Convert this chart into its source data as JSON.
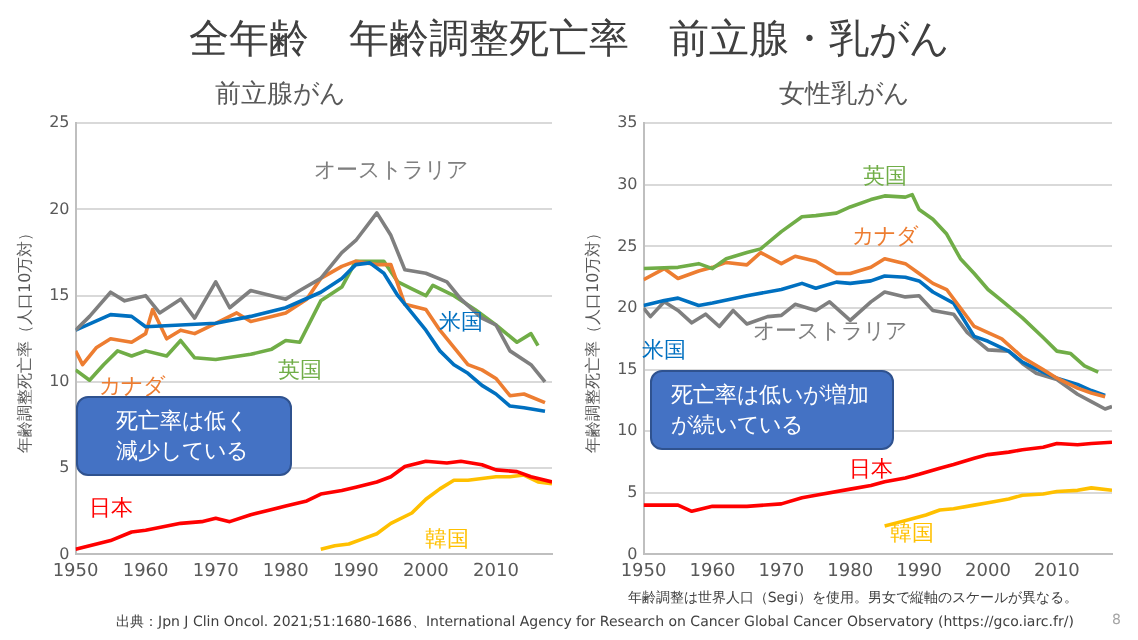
{
  "chart_data": [
    {
      "type": "line",
      "title": "前立腺がん",
      "ylabel": "年齢調整死亡率（人口10万対）",
      "xlim": [
        1950,
        2018
      ],
      "xticks": [
        1950,
        1960,
        1970,
        1980,
        1990,
        2000,
        2010
      ],
      "ylim": [
        0,
        25
      ],
      "yticks": [
        0,
        5,
        10,
        15,
        20,
        25
      ],
      "grid": "y",
      "legend": false,
      "marker": "none",
      "line_style": "solid",
      "annotations": [
        "全年齢　年齢調整死亡率　前立腺・乳がん",
        "死亡率は低く減少している"
      ],
      "series": [
        {
          "name": "オーストラリア",
          "color": "#7f7f7f",
          "x": [
            1950,
            1952,
            1955,
            1957,
            1960,
            1962,
            1965,
            1967,
            1970,
            1972,
            1975,
            1978,
            1980,
            1982,
            1985,
            1988,
            1990,
            1993,
            1995,
            1997,
            2000,
            2003,
            2005,
            2008,
            2010,
            2012,
            2015,
            2017
          ],
          "values": [
            13,
            13.8,
            15.2,
            14.7,
            15,
            14,
            14.8,
            13.7,
            15.8,
            14.3,
            15.3,
            15,
            14.8,
            15.3,
            16,
            17.5,
            18.2,
            19.8,
            18.5,
            16.5,
            16.3,
            15.8,
            14.8,
            13.7,
            13.3,
            11.8,
            11,
            10
          ]
        },
        {
          "name": "米国",
          "color": "#0070c0",
          "x": [
            1950,
            1955,
            1958,
            1960,
            1965,
            1970,
            1975,
            1980,
            1985,
            1988,
            1990,
            1992,
            1994,
            1996,
            1998,
            2000,
            2002,
            2004,
            2006,
            2008,
            2010,
            2012,
            2014,
            2017
          ],
          "values": [
            13,
            13.9,
            13.8,
            13.2,
            13.3,
            13.4,
            13.8,
            14.3,
            15.2,
            16,
            16.8,
            16.9,
            16.3,
            15,
            14,
            13,
            11.8,
            11,
            10.5,
            9.8,
            9.3,
            8.6,
            8.5,
            8.3
          ]
        },
        {
          "name": "カナダ",
          "color": "#ed7d31",
          "x": [
            1950,
            1951,
            1953,
            1955,
            1958,
            1960,
            1961,
            1963,
            1965,
            1967,
            1970,
            1973,
            1975,
            1978,
            1980,
            1983,
            1985,
            1988,
            1990,
            1993,
            1995,
            1997,
            2000,
            2002,
            2004,
            2006,
            2008,
            2010,
            2012,
            2014,
            2017
          ],
          "values": [
            11.8,
            11,
            12,
            12.5,
            12.3,
            12.8,
            14.2,
            12.5,
            13,
            12.8,
            13.4,
            14,
            13.5,
            13.8,
            14,
            14.8,
            16,
            16.7,
            17,
            16.8,
            16.8,
            14.5,
            14.2,
            13,
            12,
            11,
            10.7,
            10.2,
            9.2,
            9.3,
            8.8
          ]
        },
        {
          "name": "英国",
          "color": "#70ad47",
          "x": [
            1950,
            1952,
            1954,
            1956,
            1958,
            1960,
            1963,
            1965,
            1967,
            1970,
            1975,
            1978,
            1980,
            1982,
            1985,
            1988,
            1990,
            1992,
            1994,
            1996,
            1998,
            2000,
            2001,
            2004,
            2007,
            2010,
            2013,
            2015,
            2016
          ],
          "values": [
            10.7,
            10.1,
            11,
            11.8,
            11.5,
            11.8,
            11.5,
            12.4,
            11.4,
            11.3,
            11.6,
            11.9,
            12.4,
            12.3,
            14.7,
            15.5,
            17,
            17,
            17,
            15.8,
            15.4,
            15,
            15.6,
            15,
            14.2,
            13.3,
            12.3,
            12.8,
            12.1
          ]
        },
        {
          "name": "日本",
          "color": "#ff0000",
          "x": [
            1950,
            1955,
            1958,
            1960,
            1965,
            1968,
            1970,
            1972,
            1975,
            1980,
            1983,
            1985,
            1988,
            1990,
            1993,
            1995,
            1997,
            2000,
            2003,
            2005,
            2008,
            2010,
            2013,
            2015,
            2018
          ],
          "values": [
            0.3,
            0.8,
            1.3,
            1.4,
            1.8,
            1.9,
            2.1,
            1.9,
            2.3,
            2.8,
            3.1,
            3.5,
            3.7,
            3.9,
            4.2,
            4.5,
            5.1,
            5.4,
            5.3,
            5.4,
            5.2,
            4.9,
            4.8,
            4.5,
            4.2
          ]
        },
        {
          "name": "韓国",
          "color": "#ffc000",
          "x": [
            1985,
            1987,
            1989,
            1991,
            1993,
            1995,
            1998,
            2000,
            2002,
            2004,
            2006,
            2008,
            2010,
            2012,
            2014,
            2016,
            2018
          ],
          "values": [
            0.3,
            0.5,
            0.6,
            0.9,
            1.2,
            1.8,
            2.4,
            3.2,
            3.8,
            4.3,
            4.3,
            4.4,
            4.5,
            4.5,
            4.6,
            4.2,
            4.1
          ]
        }
      ]
    },
    {
      "type": "line",
      "title": "女性乳がん",
      "ylabel": "年齢調整死亡率（人口10万対）",
      "xlim": [
        1950,
        2018
      ],
      "xticks": [
        1950,
        1960,
        1970,
        1980,
        1990,
        2000,
        2010
      ],
      "ylim": [
        0,
        35
      ],
      "yticks": [
        0,
        5,
        10,
        15,
        20,
        25,
        30,
        35
      ],
      "grid": "y",
      "legend": false,
      "marker": "none",
      "line_style": "solid",
      "annotations": [
        "死亡率は低いが増加が続いている",
        "年齢調整は世界人口（Segi）を使用。男女で縦軸のスケールが異なる。",
        "出典：Jpn J Clin Oncol. 2021;51:1680-1686、International Agency for Research on Cancer Global Cancer Observatory (https://gco.iarc.fr/)",
        "8"
      ],
      "series": [
        {
          "name": "英国",
          "color": "#70ad47",
          "x": [
            1950,
            1955,
            1958,
            1960,
            1962,
            1965,
            1967,
            1970,
            1973,
            1975,
            1978,
            1980,
            1983,
            1985,
            1988,
            1989,
            1990,
            1992,
            1994,
            1996,
            1998,
            2000,
            2002,
            2005,
            2008,
            2010,
            2012,
            2014,
            2016
          ],
          "values": [
            23.2,
            23.3,
            23.6,
            23.2,
            24,
            24.5,
            24.8,
            26.2,
            27.4,
            27.5,
            27.7,
            28.2,
            28.8,
            29.1,
            29,
            29.2,
            28,
            27.2,
            26,
            24,
            22.8,
            21.5,
            20.6,
            19.2,
            17.6,
            16.5,
            16.3,
            15.3,
            14.8
          ]
        },
        {
          "name": "カナダ",
          "color": "#ed7d31",
          "x": [
            1950,
            1953,
            1955,
            1958,
            1960,
            1962,
            1965,
            1967,
            1970,
            1972,
            1975,
            1978,
            1980,
            1983,
            1985,
            1988,
            1990,
            1992,
            1994,
            1996,
            1998,
            2000,
            2002,
            2005,
            2008,
            2010,
            2013,
            2015,
            2017
          ],
          "values": [
            22.3,
            23.2,
            22.4,
            23,
            23.3,
            23.7,
            23.5,
            24.5,
            23.6,
            24.2,
            23.8,
            22.8,
            22.8,
            23.3,
            24,
            23.6,
            22.8,
            22,
            21.5,
            20,
            18.5,
            18,
            17.5,
            16,
            15,
            14.3,
            13.5,
            13.1,
            12.8
          ]
        },
        {
          "name": "米国",
          "color": "#0070c0",
          "x": [
            1950,
            1953,
            1955,
            1958,
            1960,
            1965,
            1970,
            1973,
            1975,
            1978,
            1980,
            1983,
            1985,
            1988,
            1990,
            1992,
            1995,
            1998,
            2000,
            2003,
            2005,
            2008,
            2010,
            2013,
            2015,
            2017
          ],
          "values": [
            20.2,
            20.6,
            20.8,
            20.2,
            20.4,
            21,
            21.5,
            22,
            21.6,
            22.1,
            22,
            22.2,
            22.6,
            22.5,
            22.2,
            21.3,
            20.4,
            17.7,
            17.3,
            16.5,
            15.6,
            14.8,
            14.3,
            13.8,
            13.3,
            12.9
          ]
        },
        {
          "name": "オーストラリア",
          "color": "#7f7f7f",
          "x": [
            1950,
            1951,
            1953,
            1955,
            1957,
            1959,
            1961,
            1963,
            1965,
            1968,
            1970,
            1972,
            1975,
            1977,
            1980,
            1983,
            1985,
            1988,
            1990,
            1992,
            1995,
            1997,
            2000,
            2003,
            2005,
            2007,
            2010,
            2013,
            2015,
            2017,
            2018
          ],
          "values": [
            20,
            19.3,
            20.5,
            19.8,
            18.8,
            19.5,
            18.5,
            19.8,
            18.7,
            19.3,
            19.4,
            20.3,
            19.8,
            20.5,
            19,
            20.5,
            21.3,
            20.9,
            21,
            19.8,
            19.5,
            18,
            16.6,
            16.5,
            15.5,
            14.7,
            14.2,
            13,
            12.4,
            11.8,
            12
          ]
        },
        {
          "name": "日本",
          "color": "#ff0000",
          "x": [
            1950,
            1955,
            1957,
            1960,
            1965,
            1970,
            1973,
            1975,
            1980,
            1983,
            1985,
            1988,
            1990,
            1993,
            1995,
            1998,
            2000,
            2003,
            2005,
            2008,
            2010,
            2013,
            2015,
            2018
          ],
          "values": [
            4,
            4,
            3.5,
            3.9,
            3.9,
            4.1,
            4.6,
            4.8,
            5.3,
            5.6,
            5.9,
            6.2,
            6.5,
            7,
            7.3,
            7.8,
            8.1,
            8.3,
            8.5,
            8.7,
            9,
            8.9,
            9,
            9.1
          ]
        },
        {
          "name": "韓国",
          "color": "#ffc000",
          "x": [
            1985,
            1987,
            1989,
            1991,
            1993,
            1995,
            1998,
            2000,
            2003,
            2005,
            2008,
            2010,
            2013,
            2015,
            2018
          ],
          "values": [
            2.3,
            2.6,
            2.9,
            3.2,
            3.6,
            3.7,
            4,
            4.2,
            4.5,
            4.8,
            4.9,
            5.1,
            5.2,
            5.4,
            5.2
          ]
        }
      ]
    }
  ]
}
